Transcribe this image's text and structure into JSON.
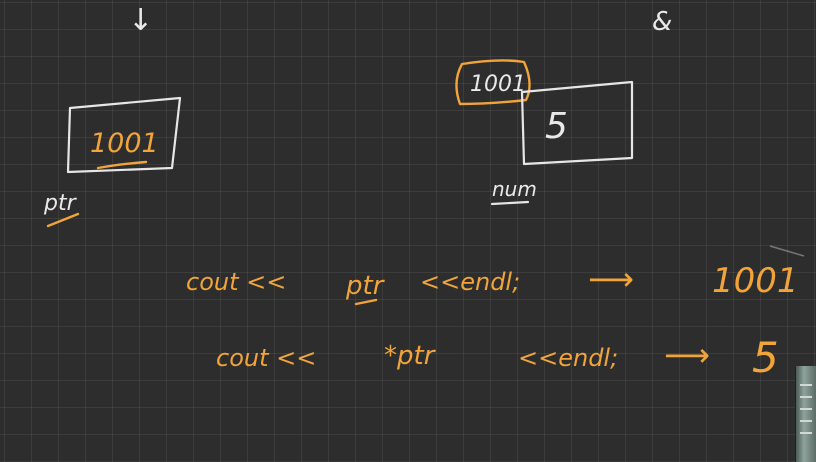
{
  "top_marks": {
    "left_arrow_glyph": "↓",
    "right_mark_glyph": "&"
  },
  "ptr_box": {
    "value": "1001",
    "label": "ptr"
  },
  "num_box": {
    "address": "1001",
    "value": "5",
    "label": "num"
  },
  "code_lines": [
    {
      "code_prefix": "cout <<",
      "code_var": "ptr",
      "code_suffix": "<<endl;",
      "arrow": "⟶",
      "output": "1001"
    },
    {
      "code_prefix": "cout <<",
      "code_var": "*ptr",
      "code_suffix": "<<endl;",
      "arrow": "⟶",
      "output": "5"
    }
  ],
  "colors": {
    "background": "#2d2d2e",
    "ink_white": "#e9e9e9",
    "ink_orange": "#f0a43a"
  }
}
